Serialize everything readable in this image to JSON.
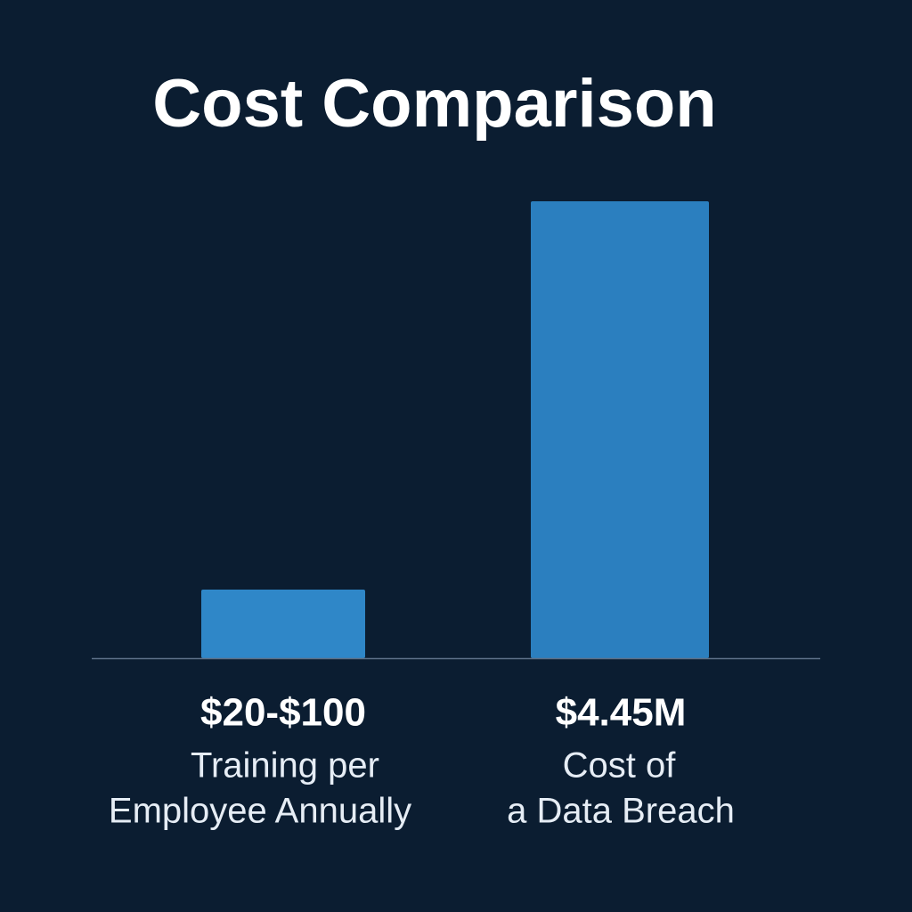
{
  "title": "Cost Comparison",
  "items": [
    {
      "amount": "$20-$100",
      "caption": [
        "Training per",
        "Employee Annually"
      ]
    },
    {
      "amount": "$4.45M",
      "caption": [
        "Cost of",
        "a Data Breach"
      ]
    }
  ]
}
